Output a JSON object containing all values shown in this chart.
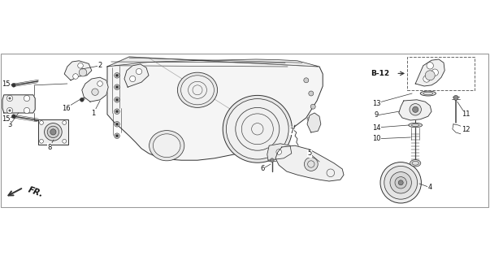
{
  "bg_color": "#ffffff",
  "line_color": "#333333",
  "text_color": "#111111",
  "figsize": [
    6.03,
    3.2
  ],
  "dpi": 100,
  "fr_label": "FR.",
  "b12_label": "B-12",
  "part_labels": {
    "1": [
      1.93,
      1.95,
      2.12,
      2.18
    ],
    "2": [
      2.05,
      2.88,
      1.82,
      2.72
    ],
    "3": [
      0.24,
      1.72,
      0.55,
      1.92
    ],
    "4": [
      8.78,
      0.45,
      8.42,
      0.52
    ],
    "5": [
      6.32,
      1.12,
      6.1,
      1.05
    ],
    "6": [
      5.38,
      0.82,
      5.6,
      0.92
    ],
    "7": [
      5.98,
      1.55,
      6.1,
      1.48
    ],
    "8": [
      1.05,
      1.28,
      1.12,
      1.42
    ],
    "9": [
      7.55,
      1.82,
      7.85,
      1.88
    ],
    "10": [
      7.55,
      1.42,
      7.8,
      1.5
    ],
    "11": [
      9.42,
      1.85,
      9.18,
      1.95
    ],
    "12": [
      9.42,
      1.58,
      9.15,
      1.65
    ],
    "13": [
      7.55,
      2.12,
      7.92,
      2.15
    ],
    "14": [
      7.55,
      1.65,
      7.88,
      1.72
    ],
    "15a": [
      0.15,
      2.52,
      0.42,
      2.42
    ],
    "15b": [
      0.15,
      1.8,
      0.42,
      1.88
    ],
    "16": [
      1.35,
      2.08,
      1.62,
      2.2
    ]
  }
}
